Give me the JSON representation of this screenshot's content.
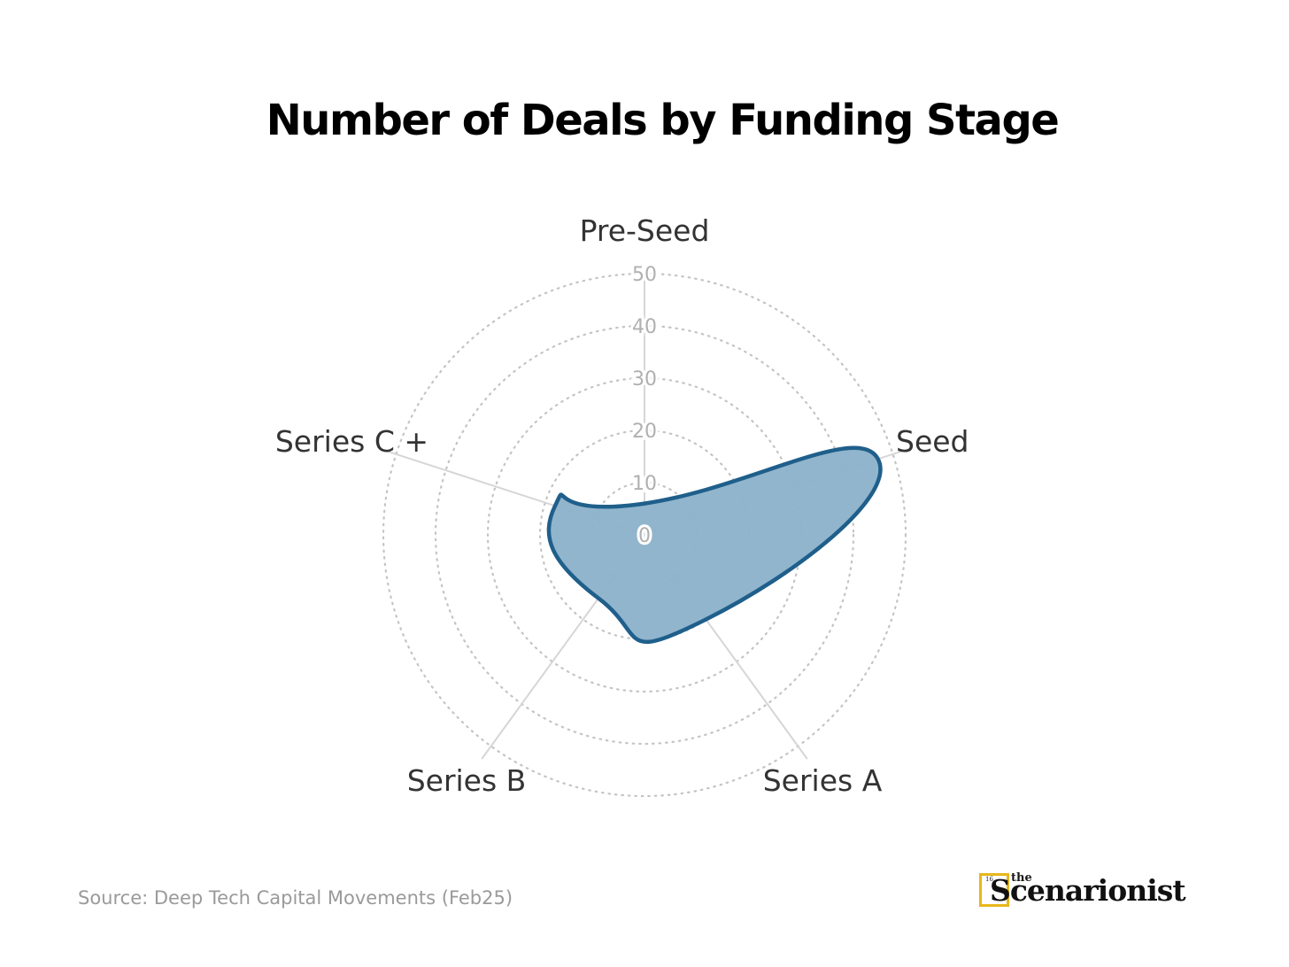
{
  "chart_data": {
    "type": "radar",
    "title": "Number of Deals by Funding Stage",
    "categories": [
      "Pre-Seed",
      "Seed",
      "Series A",
      "Series B",
      "Series C +"
    ],
    "values": [
      6,
      47,
      20,
      15,
      18
    ],
    "rticks": [
      "0",
      "10",
      "20",
      "30",
      "40",
      "50"
    ],
    "rlim": [
      0,
      50
    ],
    "grid": true,
    "grid_style": "dotted",
    "legend": "none",
    "colors": {
      "fill": "#8db3cb",
      "line": "#1f5f8b",
      "grid": "#c4c4c4",
      "spoke": "#d6d6d6",
      "tick": "#b0b0b0",
      "label": "#333333"
    }
  },
  "source": "Source: Deep Tech Capital Movements (Feb25)",
  "brand": {
    "mark": "16",
    "the": "the",
    "name": "Scenarionist",
    "accent": "#e8b71a"
  }
}
